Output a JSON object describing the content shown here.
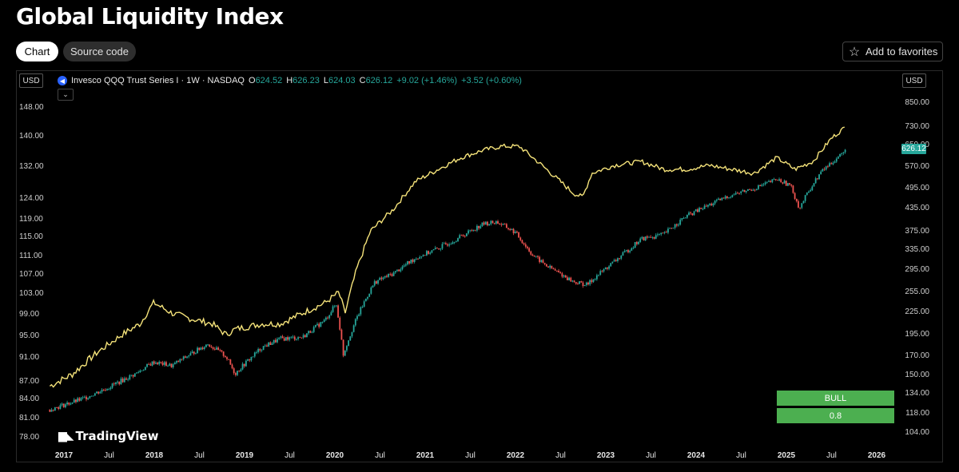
{
  "title": "Global Liquidity Index",
  "tabs": [
    {
      "label": "Chart"
    },
    {
      "label": "Source code"
    }
  ],
  "favorites_label": "Add to favorites",
  "currency_left": "USD",
  "currency_right": "USD",
  "legend": {
    "symbol": "Invesco QQQ Trust Series I · 1W · NASDAQ",
    "o_label": "O",
    "o_val": "624.52",
    "h_label": "H",
    "h_val": "626.23",
    "l_label": "L",
    "l_val": "624.03",
    "c_label": "C",
    "c_val": "626.12",
    "change": "+9.02 (+1.46%)",
    "change2": "+3.52 (+0.60%)"
  },
  "last_price": "626.12",
  "brand": "TradingView",
  "signal": {
    "label": "BULL",
    "value": "0.8"
  },
  "colors": {
    "up": "#26a69a",
    "down": "#ef5350",
    "liquidity": "#f5e37a",
    "signal": "#4caf50"
  },
  "chart_data": {
    "type": "line",
    "left_axis_ticks": [
      "148.00",
      "140.00",
      "132.00",
      "124.00",
      "119.00",
      "115.00",
      "111.00",
      "107.00",
      "103.00",
      "99.00",
      "95.00",
      "91.00",
      "87.00",
      "84.00",
      "81.00",
      "78.00"
    ],
    "right_axis_ticks": [
      "850.00",
      "730.00",
      "650.00",
      "570.00",
      "495.00",
      "435.00",
      "375.00",
      "335.00",
      "295.00",
      "255.00",
      "225.00",
      "195.00",
      "170.00",
      "150.00",
      "134.00",
      "118.00",
      "104.00"
    ],
    "x_ticks": [
      "2017",
      "Jul",
      "2018",
      "Jul",
      "2019",
      "Jul",
      "2020",
      "Jul",
      "2021",
      "Jul",
      "2022",
      "Jul",
      "2023",
      "Jul",
      "2024",
      "Jul",
      "2025",
      "Jul",
      "2026"
    ],
    "ylim_left": [
      77,
      150
    ],
    "ylim_right": [
      100,
      900
    ],
    "right_axis_scale": "log",
    "series": [
      {
        "axis": "left",
        "x": [
          2016.95,
          2017.2,
          2017.5,
          2017.75,
          2017.95,
          2018.1,
          2018.3,
          2018.5,
          2018.75,
          2018.9,
          2019.0,
          2019.3,
          2019.5,
          2019.75,
          2020.0,
          2020.15,
          2020.22,
          2020.35,
          2020.5,
          2020.75,
          2021.0,
          2021.25,
          2021.5,
          2021.75,
          2021.95,
          2022.15,
          2022.35,
          2022.55,
          2022.75,
          2022.85,
          2022.95,
          2023.2,
          2023.5,
          2023.75,
          2024.0,
          2024.25,
          2024.5,
          2024.75,
          2025.0,
          2025.2,
          2025.4,
          2025.6,
          2025.75
        ],
        "values": [
          86,
          88,
          92,
          95,
          97,
          101,
          99,
          98,
          97,
          95,
          96,
          97,
          97,
          99,
          101,
          103,
          99,
          108,
          116,
          121,
          128,
          131,
          134,
          136,
          137,
          137,
          133,
          129,
          125,
          124,
          130,
          132,
          133,
          131,
          131,
          132,
          131,
          130,
          134,
          131,
          133,
          139,
          142
        ]
      },
      {
        "axis": "right",
        "x": [
          2016.95,
          2017.3,
          2017.6,
          2017.9,
          2018.1,
          2018.3,
          2018.5,
          2018.7,
          2018.9,
          2019.0,
          2019.3,
          2019.5,
          2019.75,
          2020.0,
          2020.12,
          2020.2,
          2020.35,
          2020.55,
          2020.75,
          2021.0,
          2021.25,
          2021.5,
          2021.75,
          2021.9,
          2022.1,
          2022.3,
          2022.45,
          2022.6,
          2022.75,
          2022.9,
          2023.0,
          2023.25,
          2023.5,
          2023.75,
          2024.0,
          2024.25,
          2024.5,
          2024.75,
          2025.0,
          2025.15,
          2025.25,
          2025.35,
          2025.5,
          2025.75
        ],
        "values": [
          120,
          128,
          138,
          150,
          162,
          158,
          170,
          182,
          168,
          150,
          178,
          188,
          190,
          212,
          235,
          170,
          215,
          270,
          285,
          315,
          335,
          360,
          390,
          395,
          370,
          320,
          300,
          285,
          270,
          265,
          280,
          315,
          355,
          365,
          410,
          440,
          470,
          490,
          520,
          500,
          430,
          480,
          550,
          620
        ]
      }
    ]
  }
}
